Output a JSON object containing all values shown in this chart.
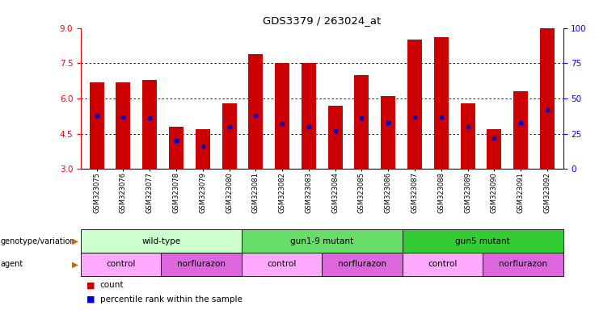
{
  "title": "GDS3379 / 263024_at",
  "samples": [
    "GSM323075",
    "GSM323076",
    "GSM323077",
    "GSM323078",
    "GSM323079",
    "GSM323080",
    "GSM323081",
    "GSM323082",
    "GSM323083",
    "GSM323084",
    "GSM323085",
    "GSM323086",
    "GSM323087",
    "GSM323088",
    "GSM323089",
    "GSM323090",
    "GSM323091",
    "GSM323092"
  ],
  "count_values": [
    6.7,
    6.7,
    6.8,
    4.8,
    4.7,
    5.8,
    7.9,
    7.5,
    7.5,
    5.7,
    7.0,
    6.1,
    8.5,
    8.6,
    5.8,
    4.7,
    6.3,
    9.0
  ],
  "percentile_values": [
    38,
    37,
    36,
    20,
    16,
    30,
    38,
    32,
    30,
    27,
    36,
    33,
    37,
    37,
    30,
    22,
    33,
    42
  ],
  "ylim_left": [
    3,
    9
  ],
  "ylim_right": [
    0,
    100
  ],
  "yticks_left": [
    3,
    4.5,
    6,
    7.5,
    9
  ],
  "yticks_right": [
    0,
    25,
    50,
    75,
    100
  ],
  "bar_color": "#cc0000",
  "dot_color": "#0000cc",
  "genotype_groups": [
    {
      "label": "wild-type",
      "start": 0,
      "end": 5,
      "color": "#ccffcc"
    },
    {
      "label": "gun1-9 mutant",
      "start": 6,
      "end": 11,
      "color": "#66dd66"
    },
    {
      "label": "gun5 mutant",
      "start": 12,
      "end": 17,
      "color": "#33cc33"
    }
  ],
  "agent_groups": [
    {
      "label": "control",
      "start": 0,
      "end": 2,
      "color": "#ffaaff"
    },
    {
      "label": "norflurazon",
      "start": 3,
      "end": 5,
      "color": "#dd66dd"
    },
    {
      "label": "control",
      "start": 6,
      "end": 8,
      "color": "#ffaaff"
    },
    {
      "label": "norflurazon",
      "start": 9,
      "end": 11,
      "color": "#dd66dd"
    },
    {
      "label": "control",
      "start": 12,
      "end": 14,
      "color": "#ffaaff"
    },
    {
      "label": "norflurazon",
      "start": 15,
      "end": 17,
      "color": "#dd66dd"
    }
  ],
  "legend_count_color": "#cc0000",
  "legend_pct_color": "#0000cc",
  "arrow_color": "#cc6600",
  "fig_width": 7.41,
  "fig_height": 3.84,
  "fig_dpi": 100
}
